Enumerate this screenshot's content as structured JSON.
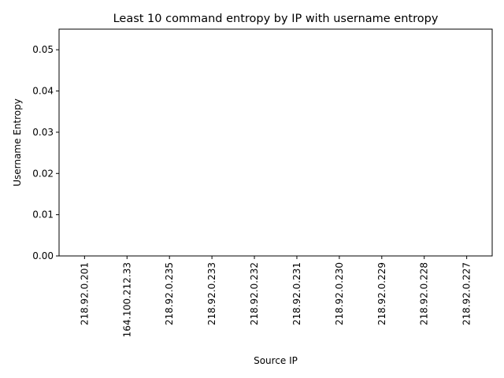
{
  "chart_data": {
    "type": "bar",
    "title": "Least 10 command entropy by IP with username entropy",
    "xlabel": "Source IP",
    "ylabel": "Username Entropy",
    "categories": [
      "218.92.0.201",
      "164.100.212.33",
      "218.92.0.235",
      "218.92.0.233",
      "218.92.0.232",
      "218.92.0.231",
      "218.92.0.230",
      "218.92.0.229",
      "218.92.0.228",
      "218.92.0.227"
    ],
    "values": [
      0,
      0,
      0,
      0,
      0,
      0,
      0,
      0,
      0,
      0
    ],
    "ylim": [
      0,
      0.055
    ],
    "yticks": [
      "0.00",
      "0.01",
      "0.02",
      "0.03",
      "0.04",
      "0.05"
    ],
    "grid": false,
    "colors": {
      "bar": "#1f77b4",
      "axis": "#000000"
    }
  }
}
